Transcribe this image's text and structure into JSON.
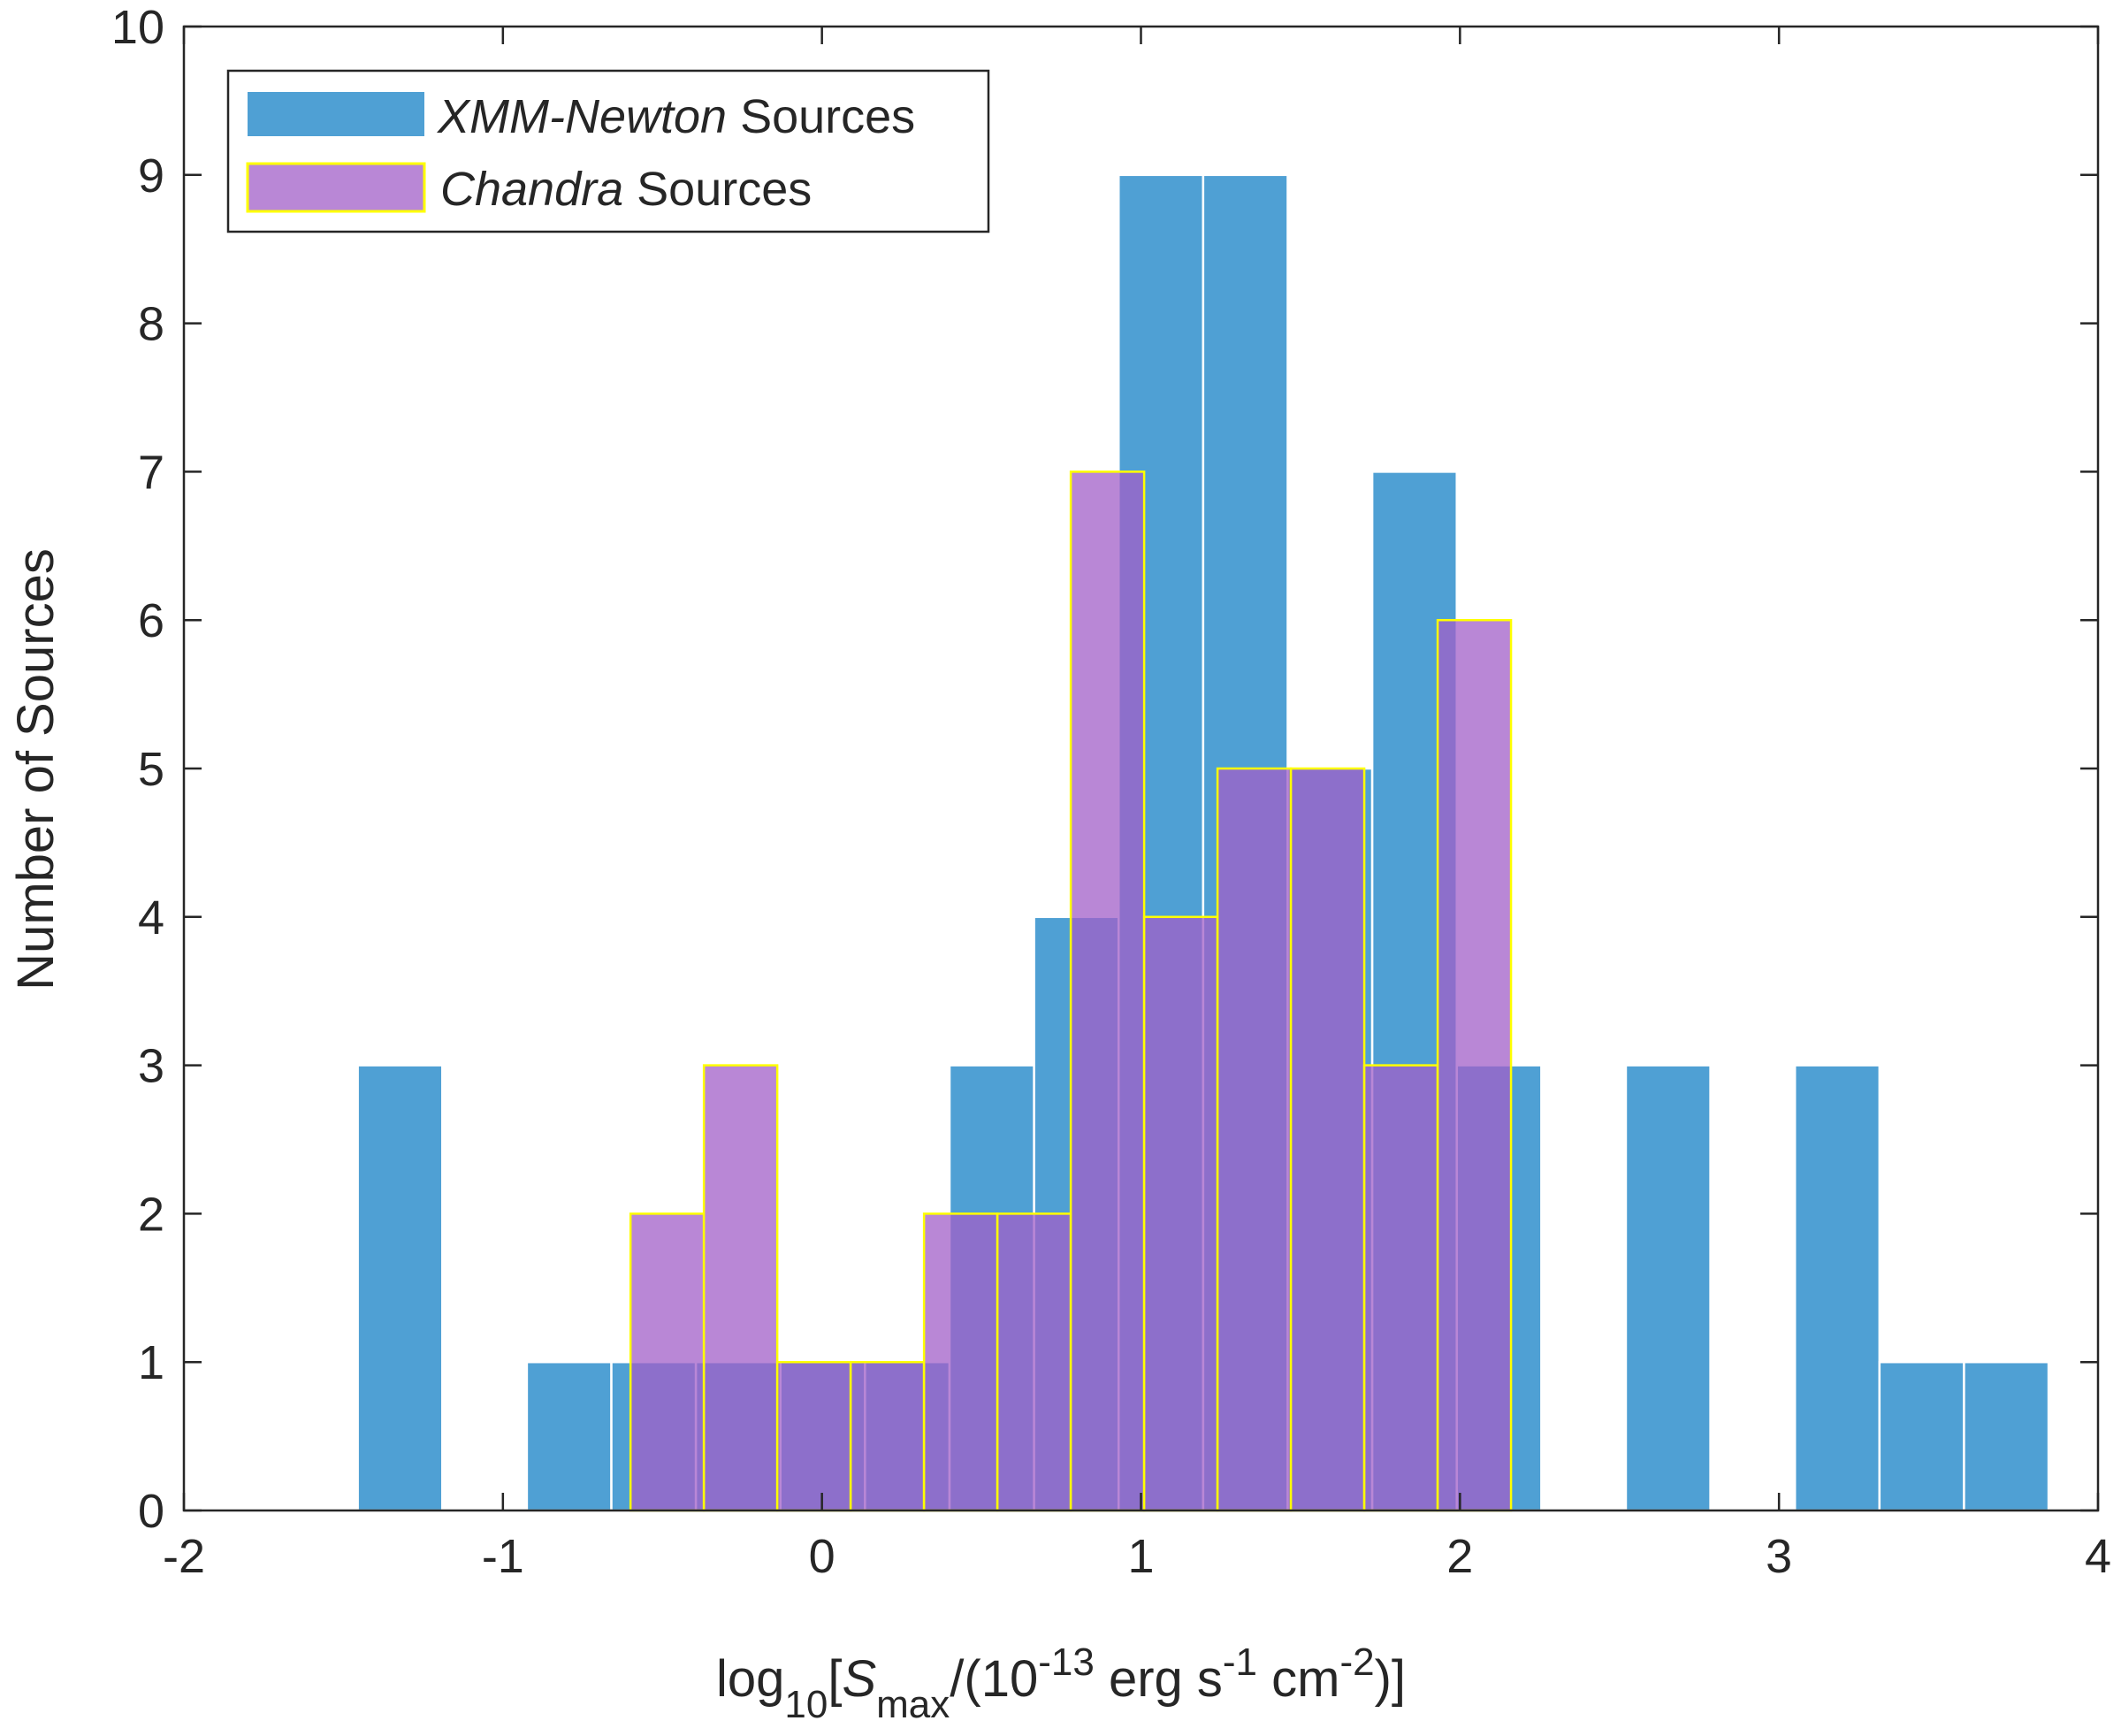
{
  "chart_data": {
    "type": "bar",
    "title": "",
    "xlabel": {
      "prefix": "log",
      "prefix_sub": "10",
      "open": "[",
      "symbol": "S",
      "symbol_sub": "max",
      "mid": "/(10",
      "exp1": "-13",
      "unit1": " erg s",
      "exp2": "-1",
      "unit2": " cm",
      "exp3": "-2",
      "close": ")]"
    },
    "ylabel": "Number of Sources",
    "xlim": [
      -2,
      4
    ],
    "ylim": [
      0,
      10
    ],
    "xticks": [
      -2,
      -1,
      0,
      1,
      2,
      3,
      4
    ],
    "yticks": [
      0,
      1,
      2,
      3,
      4,
      5,
      6,
      7,
      8,
      9,
      10
    ],
    "grid": false,
    "legend_position": "top-left",
    "series": [
      {
        "name": "XMM-Newton Sources",
        "legend_italic": "XMM-Newton",
        "legend_rest": " Sources",
        "color": "#4fa0d4",
        "edge": "#ffffff",
        "bin_width": 0.265,
        "bins": [
          {
            "x0": -1.455,
            "value": 3
          },
          {
            "x0": -0.925,
            "value": 1
          },
          {
            "x0": -0.66,
            "value": 1
          },
          {
            "x0": -0.395,
            "value": 1
          },
          {
            "x0": -0.13,
            "value": 1
          },
          {
            "x0": 0.135,
            "value": 1
          },
          {
            "x0": 0.4,
            "value": 3
          },
          {
            "x0": 0.665,
            "value": 4
          },
          {
            "x0": 0.93,
            "value": 9
          },
          {
            "x0": 1.195,
            "value": 9
          },
          {
            "x0": 1.46,
            "value": 5
          },
          {
            "x0": 1.725,
            "value": 7
          },
          {
            "x0": 1.99,
            "value": 3
          },
          {
            "x0": 2.52,
            "value": 3
          },
          {
            "x0": 3.05,
            "value": 3
          },
          {
            "x0": 3.315,
            "value": 1
          },
          {
            "x0": 3.58,
            "value": 1
          }
        ]
      },
      {
        "name": "Chandra Sources",
        "legend_italic": "Chandra",
        "legend_rest": " Sources",
        "color": "#a15fc8",
        "edge": "#ffff00",
        "bin_width": 0.23,
        "bins": [
          {
            "x0": -0.6,
            "value": 2
          },
          {
            "x0": -0.37,
            "value": 3
          },
          {
            "x0": -0.14,
            "value": 1
          },
          {
            "x0": 0.09,
            "value": 1
          },
          {
            "x0": 0.32,
            "value": 2
          },
          {
            "x0": 0.55,
            "value": 2
          },
          {
            "x0": 0.78,
            "value": 7
          },
          {
            "x0": 1.01,
            "value": 4
          },
          {
            "x0": 1.24,
            "value": 5
          },
          {
            "x0": 1.47,
            "value": 5
          },
          {
            "x0": 1.7,
            "value": 3
          },
          {
            "x0": 1.93,
            "value": 6
          }
        ]
      }
    ]
  }
}
